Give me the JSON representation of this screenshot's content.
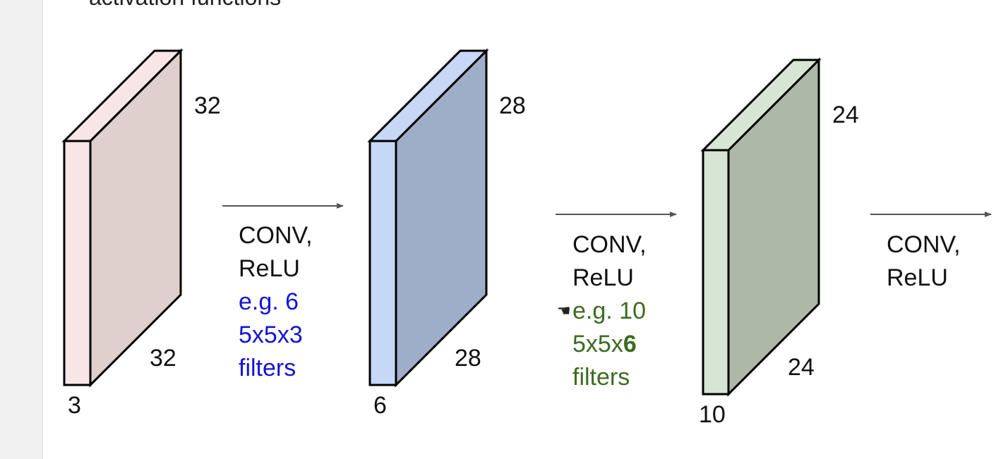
{
  "heading": "activation functions",
  "volumes": [
    {
      "name": "input",
      "height_label": "32",
      "width_label": "32",
      "depth_label": "3",
      "front_color": "#f8e5e5",
      "side_color": "#dfd0cd"
    },
    {
      "name": "conv1",
      "height_label": "28",
      "width_label": "28",
      "depth_label": "6",
      "front_color": "#c7d7f6",
      "side_color": "#9eaec8"
    },
    {
      "name": "conv2",
      "height_label": "24",
      "width_label": "24",
      "depth_label": "10",
      "front_color": "#d7e6d4",
      "side_color": "#adb8a8"
    }
  ],
  "operations": [
    {
      "line1": "CONV,",
      "line2": "ReLU",
      "note1": "e.g. 6",
      "note2_prefix": "5x5x3",
      "note2_bold": "",
      "note3": "filters",
      "note_color": "#1414d6"
    },
    {
      "line1": "CONV,",
      "line2": "ReLU",
      "note1": "e.g. 10",
      "note2_prefix": "5x5x",
      "note2_bold": "6",
      "note3": "filters",
      "note_color": "#3d6b22"
    },
    {
      "line1": "CONV,",
      "line2": "ReLU"
    }
  ],
  "cursor_icon": "hand-pointer-icon"
}
